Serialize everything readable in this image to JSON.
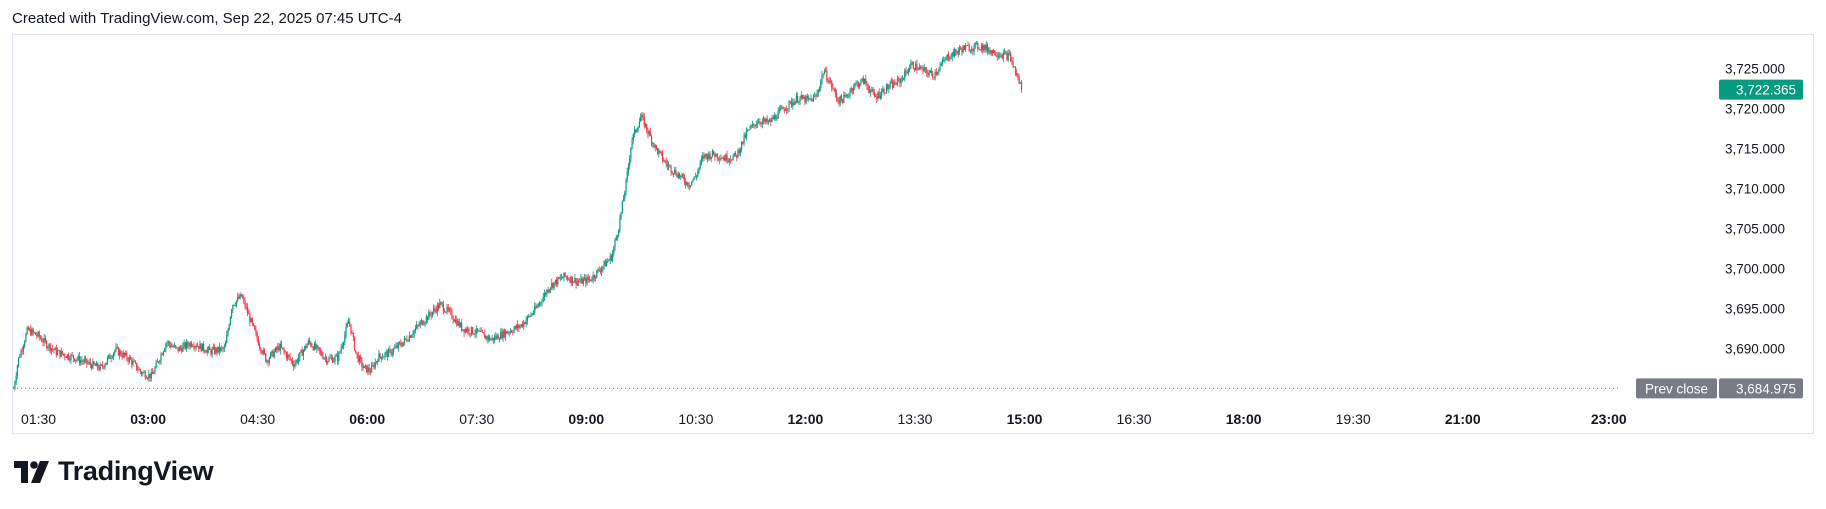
{
  "header": {
    "text": "Created with TradingView.com, Sep 22, 2025 07:45 UTC-4"
  },
  "logo": {
    "text": "TradingView"
  },
  "colors": {
    "up": "#089981",
    "down": "#f23645",
    "last_price_badge": "#089981",
    "prev_close_badge": "#787b86",
    "grid_border": "#e0e3eb"
  },
  "chart_data": {
    "type": "candlestick",
    "price_axis": {
      "ylim": [
        3683.4,
        3729.2
      ],
      "ticks": [
        3690,
        3695,
        3700,
        3705,
        3710,
        3715,
        3720,
        3725
      ],
      "tick_labels": [
        "3,690.000",
        "3,695.000",
        "3,700.000",
        "3,705.000",
        "3,710.000",
        "3,715.000",
        "3,720.000",
        "3,725.000"
      ]
    },
    "time_axis": {
      "range_hours": [
        1.15,
        23.4
      ],
      "ticks": [
        {
          "label": "01:30",
          "hour": 1.5,
          "bold": false
        },
        {
          "label": "03:00",
          "hour": 3.0,
          "bold": true
        },
        {
          "label": "04:30",
          "hour": 4.5,
          "bold": false
        },
        {
          "label": "06:00",
          "hour": 6.0,
          "bold": true
        },
        {
          "label": "07:30",
          "hour": 7.5,
          "bold": false
        },
        {
          "label": "09:00",
          "hour": 9.0,
          "bold": true
        },
        {
          "label": "10:30",
          "hour": 10.5,
          "bold": false
        },
        {
          "label": "12:00",
          "hour": 12.0,
          "bold": true
        },
        {
          "label": "13:30",
          "hour": 13.5,
          "bold": false
        },
        {
          "label": "15:00",
          "hour": 15.0,
          "bold": true
        },
        {
          "label": "16:30",
          "hour": 16.5,
          "bold": false
        },
        {
          "label": "18:00",
          "hour": 18.0,
          "bold": true
        },
        {
          "label": "19:30",
          "hour": 19.5,
          "bold": false
        },
        {
          "label": "21:00",
          "hour": 21.0,
          "bold": true
        },
        {
          "label": "23:00",
          "hour": 23.0,
          "bold": true
        }
      ]
    },
    "last_price": {
      "value": 3722.365,
      "label": "3,722.365"
    },
    "prev_close": {
      "value": 3684.975,
      "label": "3,684.975",
      "title": "Prev close"
    },
    "price_path": [
      [
        1.16,
        3685.0
      ],
      [
        1.22,
        3688.5
      ],
      [
        1.35,
        3692.3
      ],
      [
        1.5,
        3691.5
      ],
      [
        1.6,
        3690.6
      ],
      [
        1.75,
        3689.5
      ],
      [
        2.0,
        3688.8
      ],
      [
        2.2,
        3688.0
      ],
      [
        2.35,
        3687.5
      ],
      [
        2.55,
        3689.8
      ],
      [
        2.75,
        3688.6
      ],
      [
        2.9,
        3687.0
      ],
      [
        3.05,
        3686.5
      ],
      [
        3.25,
        3690.8
      ],
      [
        3.4,
        3689.8
      ],
      [
        3.6,
        3690.7
      ],
      [
        3.85,
        3689.6
      ],
      [
        4.05,
        3689.9
      ],
      [
        4.15,
        3695.5
      ],
      [
        4.28,
        3696.5
      ],
      [
        4.38,
        3694.0
      ],
      [
        4.5,
        3691.0
      ],
      [
        4.62,
        3688.5
      ],
      [
        4.8,
        3690.2
      ],
      [
        5.0,
        3688.0
      ],
      [
        5.2,
        3690.8
      ],
      [
        5.45,
        3688.6
      ],
      [
        5.6,
        3688.8
      ],
      [
        5.75,
        3693.5
      ],
      [
        5.85,
        3689.2
      ],
      [
        5.95,
        3687.5
      ],
      [
        6.05,
        3687.2
      ],
      [
        6.15,
        3688.9
      ],
      [
        6.3,
        3689.4
      ],
      [
        6.5,
        3690.8
      ],
      [
        6.7,
        3692.8
      ],
      [
        6.9,
        3694.6
      ],
      [
        7.0,
        3695.5
      ],
      [
        7.15,
        3694.2
      ],
      [
        7.3,
        3692.5
      ],
      [
        7.5,
        3692.0
      ],
      [
        7.7,
        3691.1
      ],
      [
        7.9,
        3692.0
      ],
      [
        8.1,
        3692.8
      ],
      [
        8.3,
        3694.8
      ],
      [
        8.5,
        3697.8
      ],
      [
        8.7,
        3699.0
      ],
      [
        8.9,
        3698.3
      ],
      [
        9.05,
        3698.6
      ],
      [
        9.2,
        3700.0
      ],
      [
        9.35,
        3701.5
      ],
      [
        9.45,
        3705.5
      ],
      [
        9.55,
        3711.0
      ],
      [
        9.62,
        3716.0
      ],
      [
        9.75,
        3719.0
      ],
      [
        9.85,
        3717.0
      ],
      [
        9.95,
        3715.0
      ],
      [
        10.1,
        3713.0
      ],
      [
        10.25,
        3711.8
      ],
      [
        10.4,
        3710.5
      ],
      [
        10.5,
        3711.5
      ],
      [
        10.6,
        3714.0
      ],
      [
        10.75,
        3714.3
      ],
      [
        10.9,
        3713.8
      ],
      [
        11.05,
        3714.0
      ],
      [
        11.2,
        3717.0
      ],
      [
        11.35,
        3718.5
      ],
      [
        11.5,
        3718.2
      ],
      [
        11.7,
        3720.0
      ],
      [
        11.9,
        3721.3
      ],
      [
        12.05,
        3721.0
      ],
      [
        12.15,
        3721.5
      ],
      [
        12.25,
        3724.8
      ],
      [
        12.35,
        3723.0
      ],
      [
        12.45,
        3721.0
      ],
      [
        12.55,
        3721.3
      ],
      [
        12.65,
        3722.8
      ],
      [
        12.8,
        3723.5
      ],
      [
        12.95,
        3721.4
      ],
      [
        13.1,
        3722.5
      ],
      [
        13.3,
        3723.5
      ],
      [
        13.45,
        3725.5
      ],
      [
        13.6,
        3724.8
      ],
      [
        13.75,
        3724.2
      ],
      [
        13.95,
        3726.5
      ],
      [
        14.15,
        3727.5
      ],
      [
        14.4,
        3727.8
      ],
      [
        14.6,
        3727.0
      ],
      [
        14.8,
        3726.5
      ],
      [
        14.92,
        3723.5
      ],
      [
        14.97,
        3722.365
      ]
    ]
  }
}
